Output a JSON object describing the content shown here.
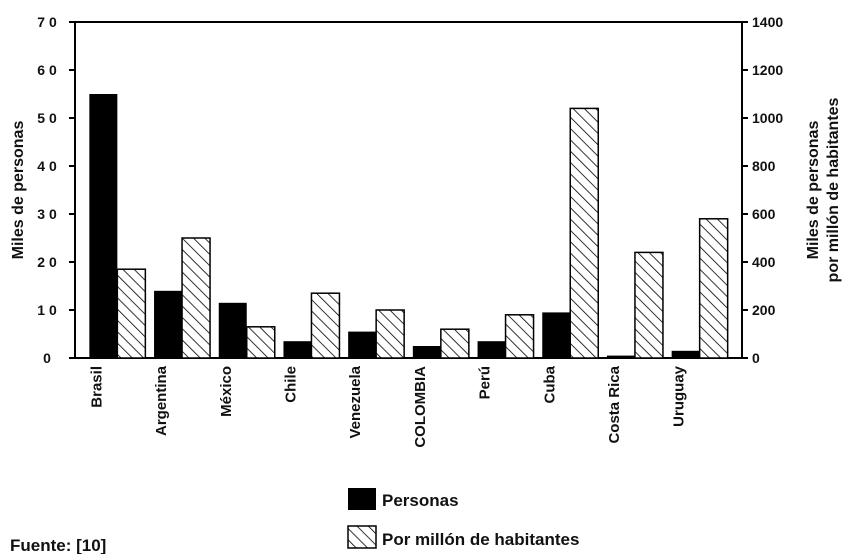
{
  "chart_data": {
    "type": "bar",
    "categories": [
      "Brasil",
      "Argentina",
      "México",
      "Chile",
      "Venezuela",
      "COLOMBIA",
      "Perú",
      "Cuba",
      "Costa Rica",
      "Uruguay"
    ],
    "series": [
      {
        "name": "Personas",
        "axis": "left",
        "color": "#000000",
        "fill": "solid",
        "values": [
          55,
          14,
          11.5,
          3.5,
          5.5,
          2.5,
          3.5,
          9.5,
          0.5,
          1.5
        ]
      },
      {
        "name": "Por millón de habitantes",
        "axis": "right",
        "color": "#000000",
        "fill": "hatched",
        "values": [
          370,
          500,
          130,
          270,
          200,
          120,
          180,
          1040,
          440,
          580
        ]
      }
    ],
    "ylabel": "Miles de personas",
    "ylabel_right": [
      "Miles de personas",
      "por millón de habitantes"
    ],
    "ylim": [
      0,
      70
    ],
    "yticks": [
      "0",
      "1 0",
      "2 0",
      "3 0",
      "4 0",
      "5 0",
      "6 0",
      "7 0"
    ],
    "ylim_right": [
      0,
      1400
    ],
    "yticks_right": [
      "0",
      "200",
      "400",
      "600",
      "800",
      "1000",
      "1200",
      "1400"
    ],
    "grid": false,
    "legend_position": "bottom-center"
  },
  "source": "Fuente: [10]"
}
